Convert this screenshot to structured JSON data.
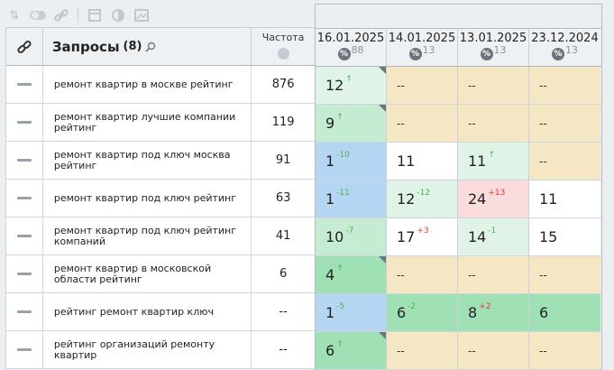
{
  "toolbar": {
    "icons": [
      "sort-icon",
      "toggle-icon",
      "link-icon",
      "table-icon",
      "contrast-icon",
      "export-image-icon"
    ]
  },
  "header": {
    "link_icon": "link-icon",
    "queries_title": "Запросы",
    "queries_count": "(8)",
    "search_icon": "search-icon",
    "frequency_label": "Частота",
    "frequency_icon": "globe-icon"
  },
  "dates": [
    {
      "date": "16.01.2025",
      "pct_symbol": "%",
      "value": "88"
    },
    {
      "date": "14.01.2025",
      "pct_symbol": "%",
      "value": "13"
    },
    {
      "date": "13.01.2025",
      "pct_symbol": "%",
      "value": "13"
    },
    {
      "date": "23.12.2024",
      "pct_symbol": "%",
      "value": "13"
    }
  ],
  "colors": {
    "green_light": "#dff3e6",
    "green_mid": "#c5ecd3",
    "green_strong": "#9fe0b4",
    "blue": "#b5d6f2",
    "beige": "#f5e6c4",
    "pink": "#fadcdc",
    "white": "#ffffff",
    "up": "#4bb24f",
    "down": "#e03a3a"
  },
  "rows": [
    {
      "query": "ремонт квартир в москве рейтинг",
      "freq": "876",
      "cells": [
        {
          "pos": "12",
          "delta": "↑",
          "dir": "up",
          "bg": "#dff3e6",
          "corner": true
        },
        {
          "pos": "--",
          "delta": "",
          "dir": "",
          "bg": "#f5e6c4",
          "corner": false
        },
        {
          "pos": "--",
          "delta": "",
          "dir": "",
          "bg": "#f5e6c4",
          "corner": false
        },
        {
          "pos": "--",
          "delta": "",
          "dir": "",
          "bg": "#f5e6c4",
          "corner": false
        }
      ]
    },
    {
      "query": "ремонт квартир лучшие компании рейтинг",
      "freq": "119",
      "cells": [
        {
          "pos": "9",
          "delta": "↑",
          "dir": "up",
          "bg": "#c5ecd3",
          "corner": true
        },
        {
          "pos": "--",
          "delta": "",
          "dir": "",
          "bg": "#f5e6c4",
          "corner": false
        },
        {
          "pos": "--",
          "delta": "",
          "dir": "",
          "bg": "#f5e6c4",
          "corner": false
        },
        {
          "pos": "--",
          "delta": "",
          "dir": "",
          "bg": "#f5e6c4",
          "corner": false
        }
      ]
    },
    {
      "query": "ремонт квартир под ключ москва рейтинг",
      "freq": "91",
      "cells": [
        {
          "pos": "1",
          "delta": "-10",
          "dir": "up",
          "bg": "#b5d6f2",
          "corner": false
        },
        {
          "pos": "11",
          "delta": "",
          "dir": "",
          "bg": "#ffffff",
          "corner": false
        },
        {
          "pos": "11",
          "delta": "↑",
          "dir": "up",
          "bg": "#dff3e6",
          "corner": false
        },
        {
          "pos": "--",
          "delta": "",
          "dir": "",
          "bg": "#f5e6c4",
          "corner": false
        }
      ]
    },
    {
      "query": "ремонт квартир под ключ рейтинг",
      "freq": "63",
      "cells": [
        {
          "pos": "1",
          "delta": "-11",
          "dir": "up",
          "bg": "#b5d6f2",
          "corner": false
        },
        {
          "pos": "12",
          "delta": "-12",
          "dir": "up",
          "bg": "#dff3e6",
          "corner": false
        },
        {
          "pos": "24",
          "delta": "+13",
          "dir": "down",
          "bg": "#fadcdc",
          "corner": false
        },
        {
          "pos": "11",
          "delta": "",
          "dir": "",
          "bg": "#ffffff",
          "corner": false
        }
      ]
    },
    {
      "query": "ремонт квартир под ключ рейтинг компаний",
      "freq": "41",
      "cells": [
        {
          "pos": "10",
          "delta": "-7",
          "dir": "up",
          "bg": "#c5ecd3",
          "corner": false
        },
        {
          "pos": "17",
          "delta": "+3",
          "dir": "down",
          "bg": "#ffffff",
          "corner": false
        },
        {
          "pos": "14",
          "delta": "-1",
          "dir": "up",
          "bg": "#dff3e6",
          "corner": false
        },
        {
          "pos": "15",
          "delta": "",
          "dir": "",
          "bg": "#ffffff",
          "corner": false
        }
      ]
    },
    {
      "query": "ремонт квартир в московской области рейтинг",
      "freq": "6",
      "cells": [
        {
          "pos": "4",
          "delta": "↑",
          "dir": "up",
          "bg": "#9fe0b4",
          "corner": true
        },
        {
          "pos": "--",
          "delta": "",
          "dir": "",
          "bg": "#f5e6c4",
          "corner": false
        },
        {
          "pos": "--",
          "delta": "",
          "dir": "",
          "bg": "#f5e6c4",
          "corner": false
        },
        {
          "pos": "--",
          "delta": "",
          "dir": "",
          "bg": "#f5e6c4",
          "corner": false
        }
      ]
    },
    {
      "query": "рейтинг ремонт квартир ключ",
      "freq": "--",
      "cells": [
        {
          "pos": "1",
          "delta": "-5",
          "dir": "up",
          "bg": "#b5d6f2",
          "corner": false
        },
        {
          "pos": "6",
          "delta": "-2",
          "dir": "up",
          "bg": "#9fe0b4",
          "corner": false
        },
        {
          "pos": "8",
          "delta": "+2",
          "dir": "down",
          "bg": "#9fe0b4",
          "corner": false
        },
        {
          "pos": "6",
          "delta": "",
          "dir": "",
          "bg": "#9fe0b4",
          "corner": false
        }
      ]
    },
    {
      "query": "рейтинг организаций ремонту квартир",
      "freq": "--",
      "cells": [
        {
          "pos": "6",
          "delta": "↑",
          "dir": "up",
          "bg": "#9fe0b4",
          "corner": true
        },
        {
          "pos": "--",
          "delta": "",
          "dir": "",
          "bg": "#f5e6c4",
          "corner": false
        },
        {
          "pos": "--",
          "delta": "",
          "dir": "",
          "bg": "#f5e6c4",
          "corner": false
        },
        {
          "pos": "--",
          "delta": "",
          "dir": "",
          "bg": "#f5e6c4",
          "corner": false
        }
      ]
    }
  ]
}
